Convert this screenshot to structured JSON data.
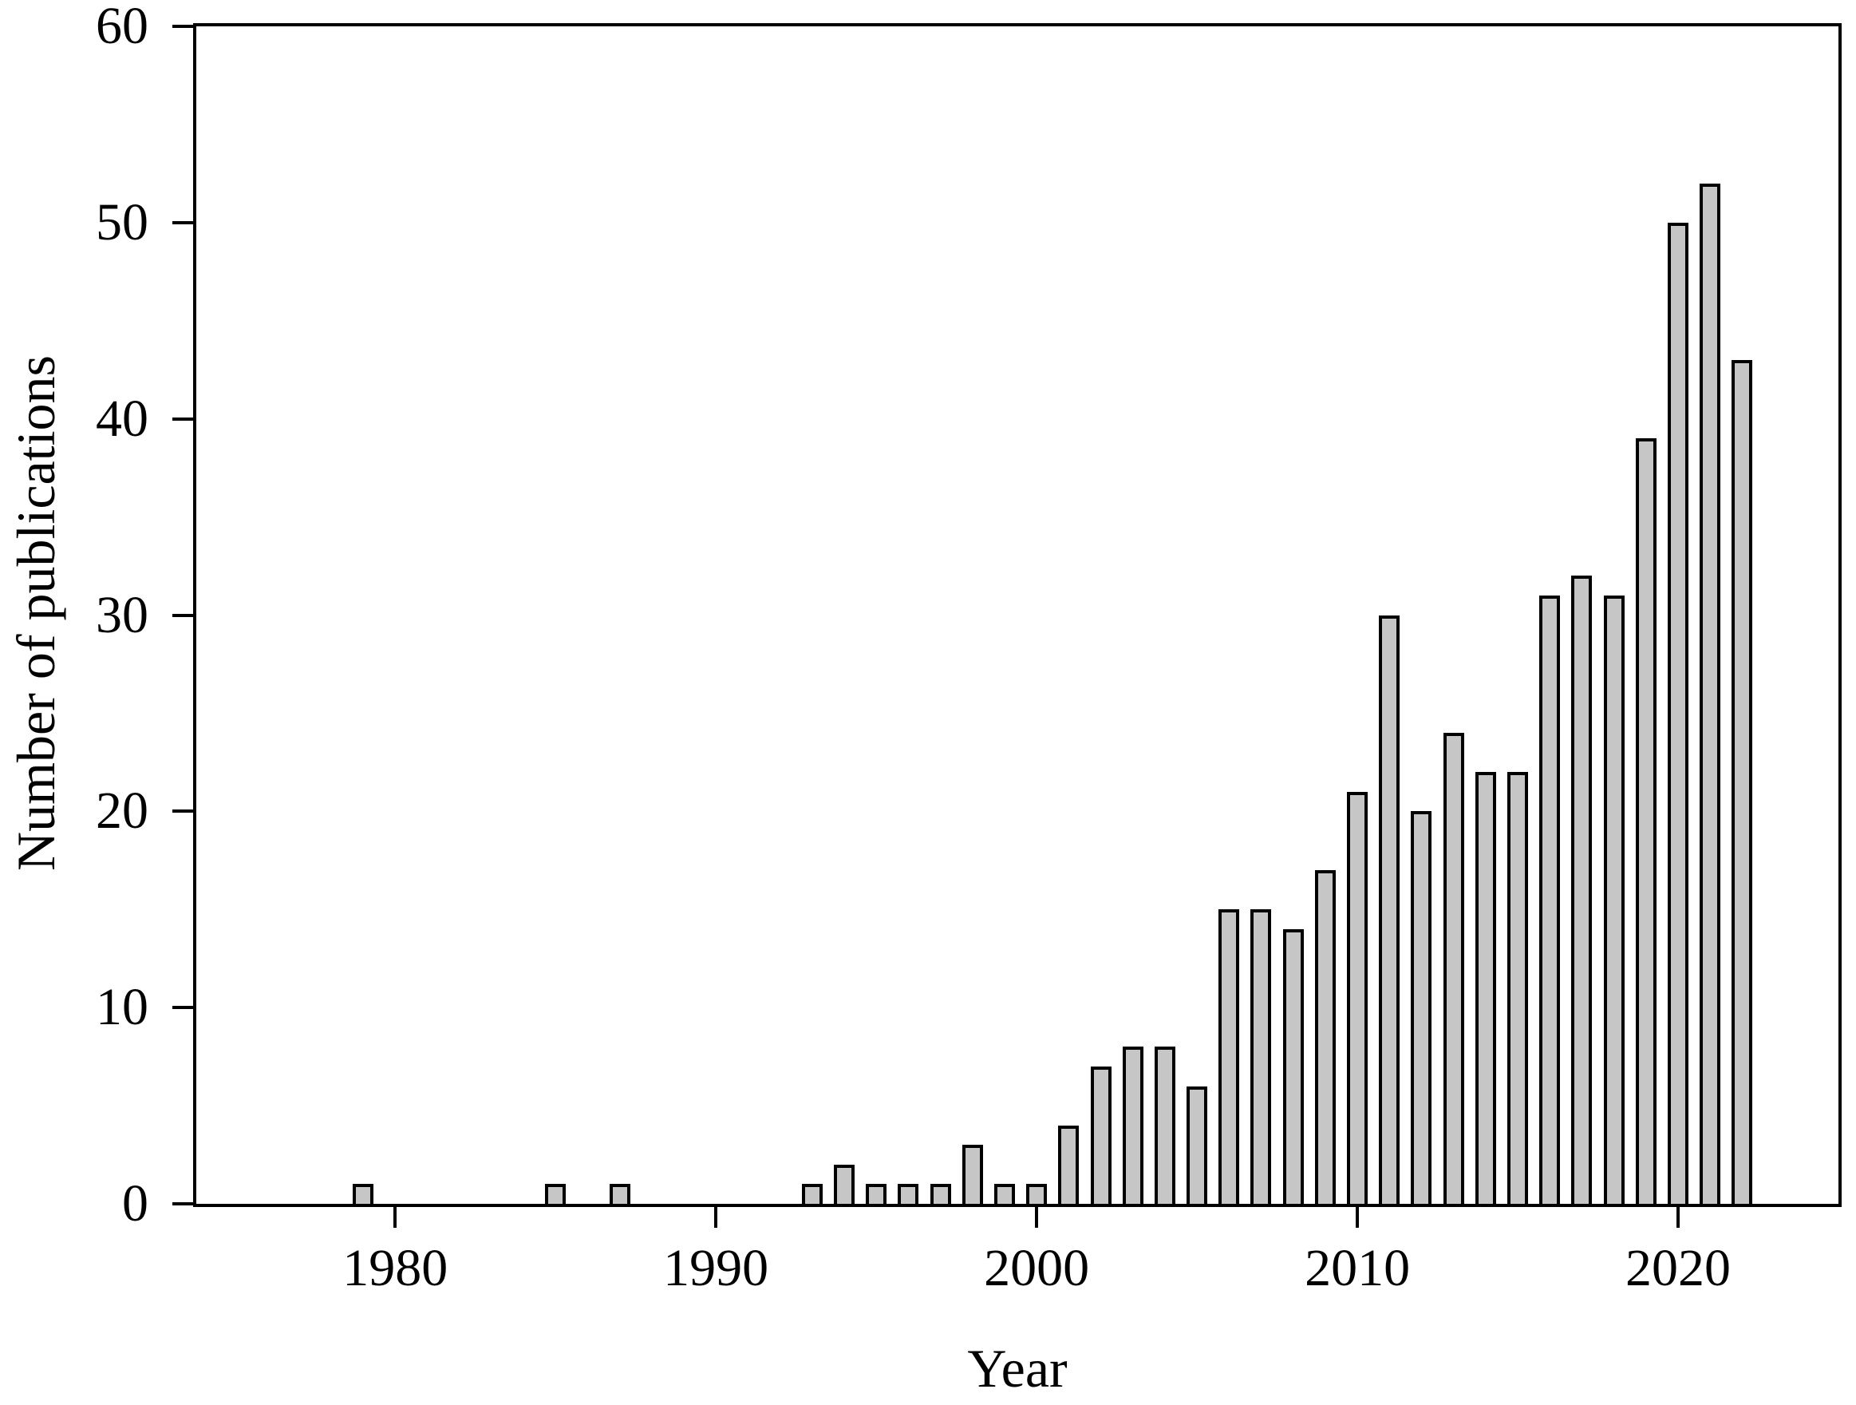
{
  "chart_data": {
    "type": "bar",
    "title": "",
    "xlabel": "Year",
    "ylabel": "Number of publications",
    "xlim": [
      1973.8,
      2025.0
    ],
    "ylim": [
      0,
      60
    ],
    "x_ticks": [
      1980,
      1990,
      2000,
      2010,
      2020
    ],
    "y_ticks": [
      0,
      10,
      20,
      30,
      40,
      50,
      60
    ],
    "grid": false,
    "legend_position": "none",
    "bar_fill_color": "#c6c6c6",
    "bar_stroke_color": "#000000",
    "frame": "full-box",
    "bars": [
      {
        "year": 1979,
        "value": 1
      },
      {
        "year": 1985,
        "value": 1
      },
      {
        "year": 1987,
        "value": 1
      },
      {
        "year": 1993,
        "value": 1
      },
      {
        "year": 1994,
        "value": 2
      },
      {
        "year": 1995,
        "value": 1
      },
      {
        "year": 1996,
        "value": 1
      },
      {
        "year": 1997,
        "value": 1
      },
      {
        "year": 1998,
        "value": 3
      },
      {
        "year": 1999,
        "value": 1
      },
      {
        "year": 2000,
        "value": 1
      },
      {
        "year": 2001,
        "value": 4
      },
      {
        "year": 2002,
        "value": 7
      },
      {
        "year": 2003,
        "value": 8
      },
      {
        "year": 2004,
        "value": 8
      },
      {
        "year": 2005,
        "value": 6
      },
      {
        "year": 2006,
        "value": 15
      },
      {
        "year": 2007,
        "value": 15
      },
      {
        "year": 2008,
        "value": 14
      },
      {
        "year": 2009,
        "value": 17
      },
      {
        "year": 2010,
        "value": 21
      },
      {
        "year": 2011,
        "value": 30
      },
      {
        "year": 2012,
        "value": 20
      },
      {
        "year": 2013,
        "value": 24
      },
      {
        "year": 2014,
        "value": 22
      },
      {
        "year": 2015,
        "value": 22
      },
      {
        "year": 2016,
        "value": 31
      },
      {
        "year": 2017,
        "value": 32
      },
      {
        "year": 2018,
        "value": 31
      },
      {
        "year": 2019,
        "value": 39
      },
      {
        "year": 2020,
        "value": 50
      },
      {
        "year": 2021,
        "value": 52
      },
      {
        "year": 2022,
        "value": 43
      }
    ]
  }
}
